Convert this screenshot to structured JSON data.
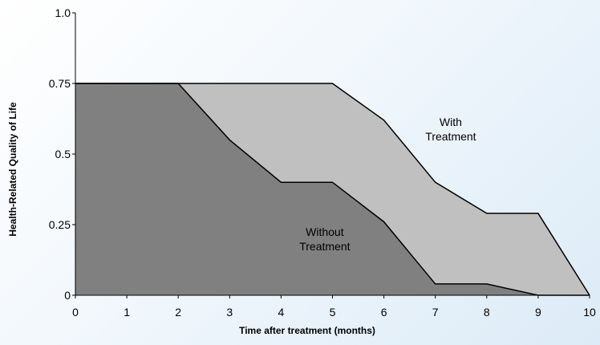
{
  "chart_data": {
    "type": "area",
    "title": "",
    "xlabel": "Time after treatment (months)",
    "ylabel": "Health-Related Quality of Life",
    "xlim": [
      0,
      10
    ],
    "ylim": [
      0,
      1.0
    ],
    "x_ticks": [
      "0",
      "1",
      "2",
      "3",
      "4",
      "5",
      "6",
      "7",
      "8",
      "9",
      "10"
    ],
    "y_ticks": [
      {
        "value": 0,
        "label": "0"
      },
      {
        "value": 0.25,
        "label": "0.25"
      },
      {
        "value": 0.5,
        "label": "0.5"
      },
      {
        "value": 0.75,
        "label": "0.75"
      },
      {
        "value": 1.0,
        "label": "1.0"
      }
    ],
    "grid": false,
    "legend": "none",
    "series": [
      {
        "name": "With Treatment",
        "color": "#c0c0c0",
        "points": [
          [
            0,
            0.75
          ],
          [
            1,
            0.75
          ],
          [
            2,
            0.75
          ],
          [
            3,
            0.75
          ],
          [
            4,
            0.75
          ],
          [
            5,
            0.75
          ],
          [
            6,
            0.62
          ],
          [
            7,
            0.4
          ],
          [
            8,
            0.29
          ],
          [
            9,
            0.29
          ],
          [
            10,
            0
          ]
        ]
      },
      {
        "name": "Without Treatment",
        "color": "#808080",
        "points": [
          [
            0,
            0.75
          ],
          [
            1,
            0.75
          ],
          [
            2,
            0.75
          ],
          [
            3,
            0.55
          ],
          [
            4,
            0.4
          ],
          [
            5,
            0.4
          ],
          [
            6,
            0.26
          ],
          [
            7,
            0.04
          ],
          [
            8,
            0.04
          ],
          [
            9,
            0
          ],
          [
            10,
            0
          ]
        ]
      }
    ],
    "annotations": [
      {
        "lines": [
          "With",
          "Treatment"
        ],
        "x": 7.3,
        "y": 0.6
      },
      {
        "lines": [
          "Without",
          "Treatment"
        ],
        "x": 4.85,
        "y": 0.21
      }
    ]
  }
}
